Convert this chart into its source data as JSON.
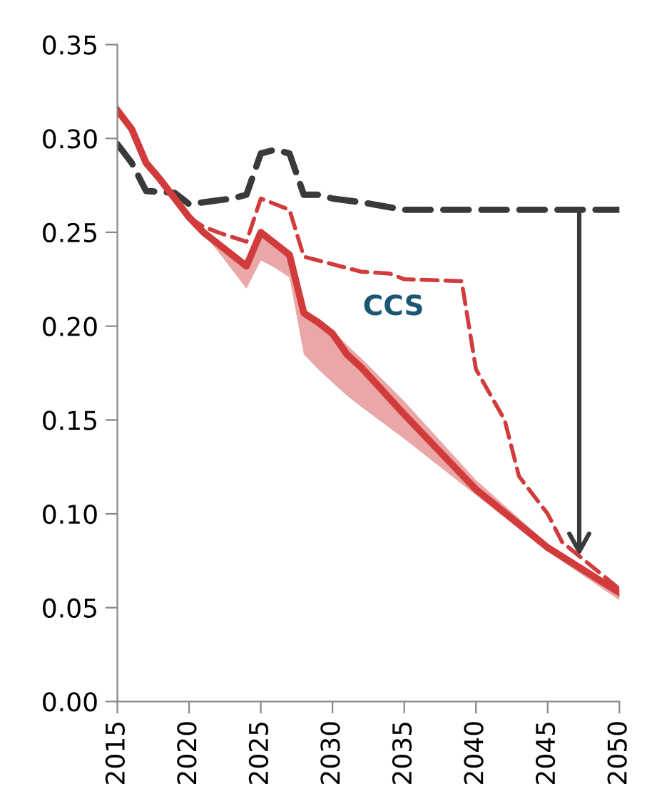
{
  "chart_data": {
    "type": "line",
    "xlim": [
      2015,
      2050
    ],
    "ylim": [
      0,
      0.35
    ],
    "xticks": [
      2015,
      2020,
      2025,
      2030,
      2035,
      2040,
      2045,
      2050
    ],
    "yticks": [
      {
        "value": 0,
        "label": "0.00"
      },
      {
        "value": 0.05,
        "label": "0.05"
      },
      {
        "value": 0.1,
        "label": "0.10"
      },
      {
        "value": 0.15,
        "label": "0.15"
      },
      {
        "value": 0.2,
        "label": "0.20"
      },
      {
        "value": 0.25,
        "label": "0.25"
      },
      {
        "value": 0.3,
        "label": "0.30"
      },
      {
        "value": 0.35,
        "label": "0.35"
      }
    ],
    "grid": false,
    "legend": false,
    "marker": "none",
    "series": [
      {
        "color": "#3a3a3a",
        "line_style": "dashed",
        "x": [
          2015,
          2016,
          2017,
          2019,
          2020,
          2022,
          2023,
          2024,
          2025,
          2026,
          2027,
          2028,
          2029,
          2030,
          2032,
          2035,
          2040,
          2050
        ],
        "values": [
          0.297,
          0.287,
          0.272,
          0.271,
          0.265,
          0.267,
          0.268,
          0.27,
          0.292,
          0.294,
          0.292,
          0.27,
          0.27,
          0.268,
          0.266,
          0.262,
          0.262,
          0.262
        ]
      },
      {
        "color": "#d13b3b",
        "line_style": "dashed",
        "x": [
          2020,
          2021,
          2022,
          2024,
          2025,
          2027,
          2028,
          2030,
          2032,
          2034,
          2035,
          2039,
          2040,
          2042,
          2043,
          2045,
          2046,
          2050
        ],
        "values": [
          0.258,
          0.253,
          0.25,
          0.245,
          0.268,
          0.262,
          0.237,
          0.233,
          0.229,
          0.228,
          0.225,
          0.224,
          0.177,
          0.15,
          0.12,
          0.1,
          0.085,
          0.06
        ]
      },
      {
        "color": "#d13b3b",
        "line_style": "solid",
        "x": [
          2015,
          2016,
          2017,
          2018,
          2019,
          2020,
          2021,
          2022,
          2023,
          2024,
          2025,
          2026,
          2027,
          2028,
          2029,
          2030,
          2031,
          2032,
          2035,
          2040,
          2045,
          2050
        ],
        "values": [
          0.315,
          0.305,
          0.287,
          0.278,
          0.268,
          0.258,
          0.25,
          0.244,
          0.238,
          0.232,
          0.25,
          0.244,
          0.238,
          0.207,
          0.202,
          0.196,
          0.185,
          0.178,
          0.153,
          0.113,
          0.082,
          0.058
        ],
        "lower": [
          0.315,
          0.305,
          0.287,
          0.278,
          0.268,
          0.258,
          0.249,
          0.24,
          0.23,
          0.22,
          0.235,
          0.231,
          0.226,
          0.185,
          0.177,
          0.17,
          0.163,
          0.157,
          0.14,
          0.11,
          0.08,
          0.054
        ],
        "upper": [
          0.315,
          0.305,
          0.287,
          0.278,
          0.268,
          0.258,
          0.25,
          0.244,
          0.238,
          0.232,
          0.25,
          0.244,
          0.238,
          0.207,
          0.203,
          0.198,
          0.19,
          0.183,
          0.16,
          0.118,
          0.084,
          0.06
        ]
      }
    ],
    "annotations": [
      "CCS"
    ]
  }
}
